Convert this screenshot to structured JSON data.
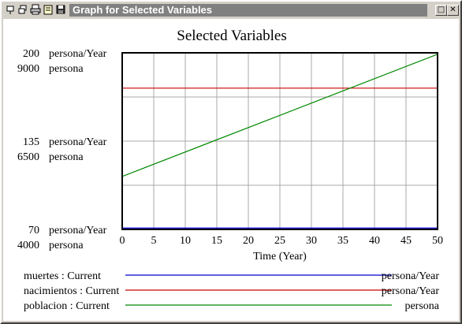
{
  "window": {
    "title": "Graph for Selected Variables",
    "toolbar_icons": [
      "pin-icon",
      "restore-icon",
      "print-icon",
      "copy-icon",
      "save-icon"
    ],
    "maximize_symbol": "□",
    "close_symbol": "✕"
  },
  "chart_data": {
    "type": "line",
    "title": "Selected Variables",
    "xlabel": "Time (Year)",
    "x_ticks": [
      "0",
      "5",
      "10",
      "15",
      "20",
      "25",
      "30",
      "35",
      "40",
      "45",
      "50"
    ],
    "xlim": [
      0,
      50
    ],
    "grid": true,
    "y_axes": [
      {
        "unit": "persona/Year",
        "ticks": [
          {
            "value": 200,
            "label": "200"
          },
          {
            "value": 135,
            "label": "135"
          },
          {
            "value": 70,
            "label": "70"
          }
        ],
        "ylim": [
          70,
          200
        ]
      },
      {
        "unit": "persona",
        "ticks": [
          {
            "value": 9000,
            "label": "9000"
          },
          {
            "value": 6500,
            "label": "6500"
          },
          {
            "value": 4000,
            "label": "4000"
          }
        ],
        "ylim": [
          4000,
          9000
        ]
      }
    ],
    "series": [
      {
        "name": "muertes : Current",
        "unit": "persona/Year",
        "axis": 0,
        "color": "#0000cc",
        "x": [
          0,
          50
        ],
        "y": [
          71,
          71
        ]
      },
      {
        "name": "nacimientos : Current",
        "unit": "persona/Year",
        "axis": 0,
        "color": "#cc0000",
        "x": [
          0,
          50
        ],
        "y": [
          174,
          174
        ]
      },
      {
        "name": "poblacion : Current",
        "unit": "persona",
        "axis": 1,
        "color": "#008800",
        "x": [
          0,
          50
        ],
        "y": [
          5500,
          8960
        ]
      }
    ]
  }
}
